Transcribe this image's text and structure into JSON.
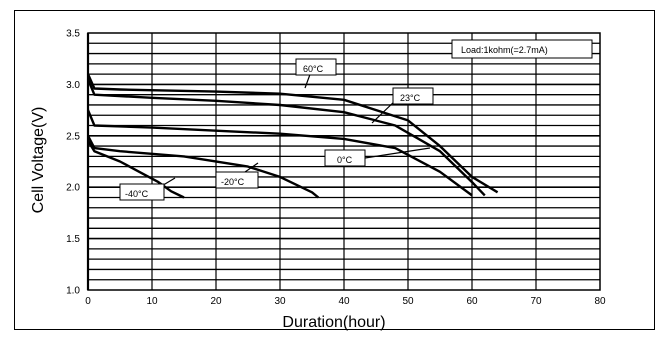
{
  "chart_data": {
    "type": "line",
    "xlabel": "Duration(hour)",
    "ylabel": "Cell Voltage(V)",
    "xlim": [
      0,
      80
    ],
    "ylim": [
      1.0,
      3.5
    ],
    "x_ticks": [
      "0",
      "10",
      "20",
      "30",
      "40",
      "50",
      "60",
      "70",
      "80"
    ],
    "y_ticks": [
      "1.0",
      "1.5",
      "2.0",
      "2.5",
      "3.0",
      "3.5"
    ],
    "grid": true,
    "load_label": "Load:1kohm(=2.7mA)",
    "series": [
      {
        "name": "60°C",
        "points": [
          [
            0,
            3.1
          ],
          [
            1,
            2.96
          ],
          [
            5,
            2.95
          ],
          [
            20,
            2.93
          ],
          [
            30,
            2.91
          ],
          [
            40,
            2.85
          ],
          [
            50,
            2.65
          ],
          [
            55,
            2.4
          ],
          [
            60,
            2.1
          ],
          [
            64,
            1.95
          ]
        ]
      },
      {
        "name": "23°C",
        "points": [
          [
            0,
            3.05
          ],
          [
            1,
            2.9
          ],
          [
            10,
            2.87
          ],
          [
            20,
            2.84
          ],
          [
            30,
            2.8
          ],
          [
            40,
            2.73
          ],
          [
            48,
            2.6
          ],
          [
            55,
            2.35
          ],
          [
            60,
            2.05
          ],
          [
            62,
            1.92
          ]
        ]
      },
      {
        "name": "0°C",
        "points": [
          [
            0,
            2.75
          ],
          [
            1,
            2.6
          ],
          [
            10,
            2.58
          ],
          [
            20,
            2.55
          ],
          [
            30,
            2.52
          ],
          [
            40,
            2.47
          ],
          [
            48,
            2.38
          ],
          [
            55,
            2.15
          ],
          [
            60,
            1.92
          ]
        ]
      },
      {
        "name": "-20°C",
        "points": [
          [
            0,
            2.5
          ],
          [
            1,
            2.38
          ],
          [
            5,
            2.35
          ],
          [
            15,
            2.3
          ],
          [
            25,
            2.2
          ],
          [
            30,
            2.1
          ],
          [
            35,
            1.95
          ],
          [
            36,
            1.9
          ]
        ]
      },
      {
        "name": "-40°C",
        "points": [
          [
            0,
            2.45
          ],
          [
            1,
            2.35
          ],
          [
            5,
            2.25
          ],
          [
            8,
            2.15
          ],
          [
            11,
            2.05
          ],
          [
            13,
            1.96
          ],
          [
            15,
            1.9
          ]
        ]
      }
    ]
  }
}
